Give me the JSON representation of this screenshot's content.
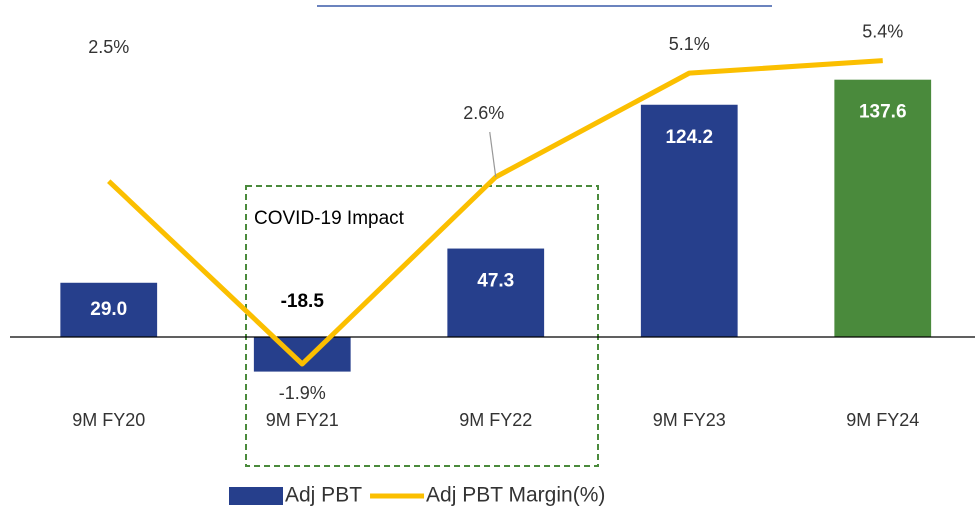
{
  "chart_data": {
    "type": "bar-line",
    "categories": [
      "9M FY20",
      "9M FY21",
      "9M FY22",
      "9M FY23",
      "9M FY24"
    ],
    "series": [
      {
        "name": "Adj PBT",
        "type": "bar",
        "color": "#263f8c",
        "colors": [
          "#263f8c",
          "#263f8c",
          "#263f8c",
          "#263f8c",
          "#4a8a3c"
        ],
        "values": [
          29.0,
          -18.5,
          47.3,
          124.2,
          137.6
        ],
        "value_labels": [
          "29.0",
          "-18.5",
          "47.3",
          "124.2",
          "137.6"
        ]
      },
      {
        "name": "Adj PBT Margin(%)",
        "type": "line",
        "axis": "y2",
        "color": "#fbbf00",
        "values": [
          2.5,
          -1.9,
          2.6,
          5.1,
          5.4
        ],
        "value_labels": [
          "2.5%",
          "-1.9%",
          "2.6%",
          "5.1%",
          "5.4%"
        ]
      }
    ],
    "ylim": [
      -50,
      150
    ],
    "y2lim": [
      -3.5,
      5.5
    ],
    "annotation": "COVID-19 Impact",
    "legend": "bottom"
  }
}
